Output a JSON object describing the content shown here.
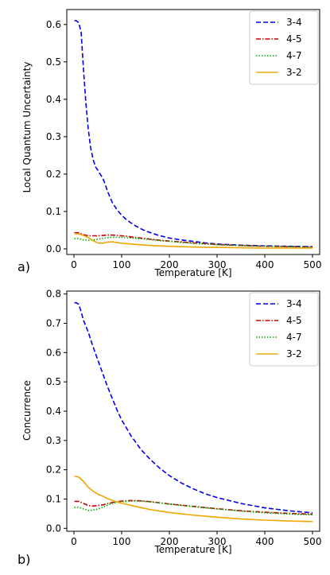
{
  "chart_data": [
    {
      "type": "line",
      "panel_label": "a)",
      "xlabel": "Temperature [K]",
      "ylabel": "Local Quantum Uncertainty",
      "xlim": [
        -15,
        515
      ],
      "ylim": [
        -0.015,
        0.64
      ],
      "xticks": [
        0,
        100,
        200,
        300,
        400,
        500
      ],
      "yticks": [
        0.0,
        0.1,
        0.2,
        0.3,
        0.4,
        0.5,
        0.6
      ],
      "ytick_labels": [
        "0.0",
        "0.1",
        "0.2",
        "0.3",
        "0.4",
        "0.5",
        "0.6"
      ],
      "grid": false,
      "legend_position": "top-right",
      "series": [
        {
          "name": "3-4",
          "color": "#0000ee",
          "style": "dashed",
          "x": [
            1,
            5,
            10,
            15,
            20,
            25,
            30,
            35,
            40,
            45,
            50,
            55,
            60,
            65,
            70,
            80,
            90,
            100,
            110,
            120,
            130,
            140,
            150,
            175,
            200,
            225,
            250,
            275,
            300,
            350,
            400,
            450,
            500
          ],
          "y": [
            0.61,
            0.61,
            0.605,
            0.58,
            0.48,
            0.39,
            0.32,
            0.27,
            0.24,
            0.22,
            0.21,
            0.2,
            0.19,
            0.175,
            0.155,
            0.125,
            0.105,
            0.09,
            0.078,
            0.069,
            0.061,
            0.054,
            0.048,
            0.037,
            0.029,
            0.024,
            0.02,
            0.016,
            0.013,
            0.01,
            0.008,
            0.007,
            0.006
          ]
        },
        {
          "name": "4-5",
          "color": "#cc0000",
          "style": "dashdot",
          "x": [
            1,
            10,
            20,
            30,
            40,
            50,
            60,
            70,
            80,
            90,
            100,
            110,
            120,
            140,
            160,
            180,
            200,
            250,
            300,
            350,
            400,
            450,
            500
          ],
          "y": [
            0.043,
            0.043,
            0.038,
            0.035,
            0.035,
            0.035,
            0.036,
            0.037,
            0.037,
            0.036,
            0.035,
            0.034,
            0.032,
            0.029,
            0.026,
            0.023,
            0.021,
            0.016,
            0.012,
            0.009,
            0.007,
            0.006,
            0.005
          ]
        },
        {
          "name": "4-7",
          "color": "#00aa00",
          "style": "dotted",
          "x": [
            1,
            10,
            20,
            30,
            40,
            50,
            60,
            70,
            80,
            90,
            100,
            110,
            120,
            140,
            160,
            180,
            200,
            250,
            300,
            350,
            400,
            450,
            500
          ],
          "y": [
            0.028,
            0.027,
            0.024,
            0.023,
            0.024,
            0.026,
            0.028,
            0.03,
            0.031,
            0.031,
            0.031,
            0.03,
            0.029,
            0.027,
            0.025,
            0.022,
            0.02,
            0.015,
            0.011,
            0.009,
            0.007,
            0.006,
            0.005
          ]
        },
        {
          "name": "3-2",
          "color": "#f0a500",
          "style": "solid",
          "x": [
            1,
            10,
            20,
            30,
            40,
            50,
            60,
            70,
            80,
            90,
            100,
            120,
            140,
            160,
            180,
            200,
            250,
            300,
            350,
            400,
            450,
            500
          ],
          "y": [
            0.041,
            0.04,
            0.036,
            0.03,
            0.022,
            0.016,
            0.015,
            0.018,
            0.019,
            0.017,
            0.015,
            0.013,
            0.011,
            0.009,
            0.008,
            0.007,
            0.005,
            0.004,
            0.003,
            0.002,
            0.002,
            0.002
          ]
        }
      ]
    },
    {
      "type": "line",
      "panel_label": "b)",
      "xlabel": "Temperature [K]",
      "ylabel": "Concurrence",
      "xlim": [
        -15,
        515
      ],
      "ylim": [
        -0.01,
        0.81
      ],
      "xticks": [
        0,
        100,
        200,
        300,
        400,
        500
      ],
      "yticks": [
        0.0,
        0.1,
        0.2,
        0.3,
        0.4,
        0.5,
        0.6,
        0.7,
        0.8
      ],
      "ytick_labels": [
        "0.0",
        "0.1",
        "0.2",
        "0.3",
        "0.4",
        "0.5",
        "0.6",
        "0.7",
        "0.8"
      ],
      "grid": false,
      "legend_position": "top-right",
      "series": [
        {
          "name": "3-4",
          "color": "#0000ee",
          "style": "dashed",
          "x": [
            1,
            5,
            10,
            15,
            20,
            30,
            40,
            50,
            60,
            70,
            80,
            90,
            100,
            120,
            140,
            160,
            180,
            200,
            225,
            250,
            275,
            300,
            350,
            400,
            450,
            500
          ],
          "y": [
            0.77,
            0.77,
            0.765,
            0.74,
            0.71,
            0.67,
            0.62,
            0.575,
            0.53,
            0.485,
            0.445,
            0.405,
            0.37,
            0.315,
            0.27,
            0.235,
            0.205,
            0.18,
            0.155,
            0.135,
            0.118,
            0.105,
            0.085,
            0.07,
            0.06,
            0.053
          ]
        },
        {
          "name": "4-5",
          "color": "#cc0000",
          "style": "dashdot",
          "x": [
            1,
            10,
            20,
            30,
            40,
            50,
            60,
            70,
            80,
            90,
            100,
            120,
            140,
            160,
            180,
            200,
            250,
            300,
            350,
            400,
            450,
            500
          ],
          "y": [
            0.092,
            0.092,
            0.085,
            0.078,
            0.076,
            0.078,
            0.08,
            0.084,
            0.088,
            0.091,
            0.093,
            0.095,
            0.094,
            0.091,
            0.087,
            0.083,
            0.075,
            0.067,
            0.06,
            0.055,
            0.051,
            0.048
          ]
        },
        {
          "name": "4-7",
          "color": "#00aa00",
          "style": "dotted",
          "x": [
            1,
            10,
            20,
            30,
            40,
            50,
            60,
            70,
            80,
            90,
            100,
            120,
            140,
            160,
            180,
            200,
            250,
            300,
            350,
            400,
            450,
            500
          ],
          "y": [
            0.072,
            0.072,
            0.066,
            0.061,
            0.062,
            0.066,
            0.072,
            0.079,
            0.085,
            0.089,
            0.091,
            0.093,
            0.093,
            0.09,
            0.087,
            0.083,
            0.074,
            0.066,
            0.059,
            0.053,
            0.049,
            0.046
          ]
        },
        {
          "name": "3-2",
          "color": "#f0a500",
          "style": "solid",
          "x": [
            1,
            10,
            20,
            30,
            40,
            50,
            60,
            70,
            80,
            90,
            100,
            120,
            140,
            160,
            180,
            200,
            250,
            300,
            350,
            400,
            450,
            500
          ],
          "y": [
            0.178,
            0.175,
            0.16,
            0.14,
            0.127,
            0.117,
            0.11,
            0.102,
            0.096,
            0.09,
            0.086,
            0.078,
            0.071,
            0.064,
            0.059,
            0.054,
            0.045,
            0.038,
            0.032,
            0.028,
            0.025,
            0.023
          ]
        }
      ]
    }
  ]
}
